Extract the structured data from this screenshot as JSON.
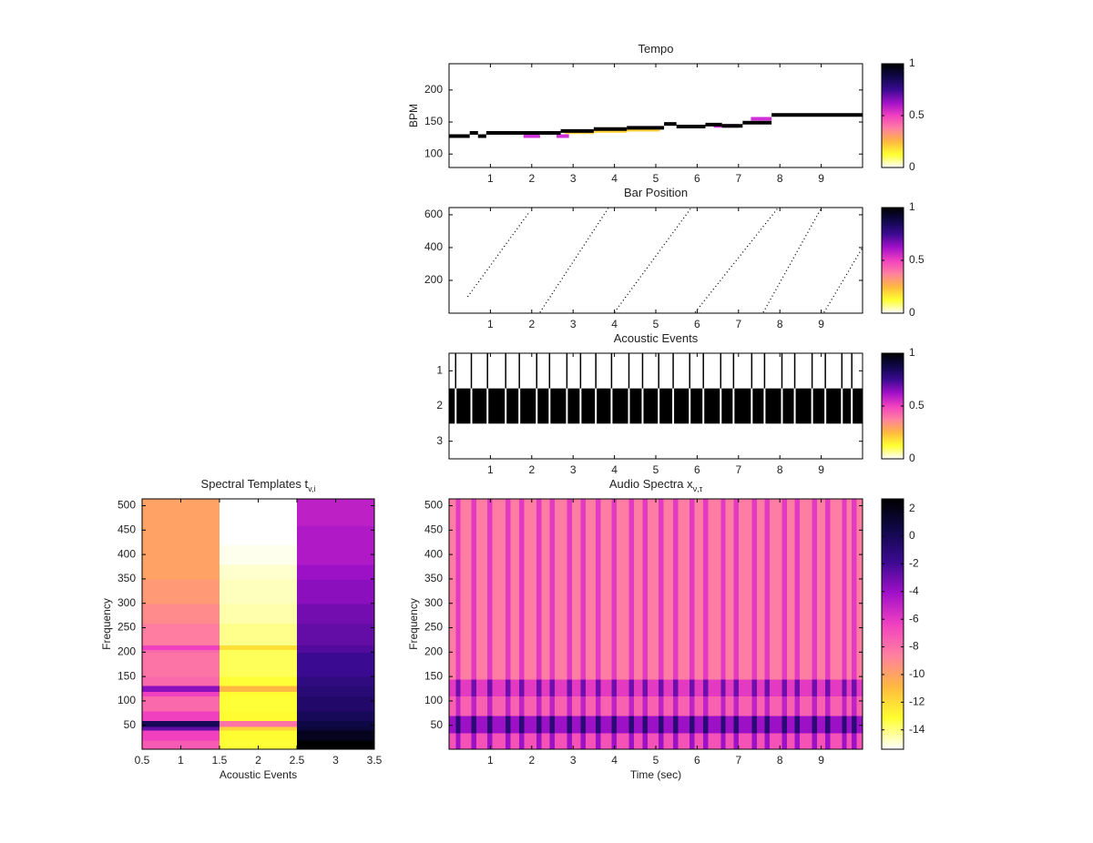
{
  "colormap": [
    "#ffffff",
    "#ffff30",
    "#ffb840",
    "#ff80a0",
    "#f040c0",
    "#a010c8",
    "#3a0a90",
    "#10084a",
    "#000000"
  ],
  "chart_data": [
    {
      "type": "step",
      "title": "Tempo",
      "ylabel": "BPM",
      "xlim": [
        0,
        10
      ],
      "xticks": [
        1,
        2,
        3,
        4,
        5,
        6,
        7,
        8,
        9
      ],
      "ylim": [
        79,
        241
      ],
      "yticks": [
        100,
        150,
        200
      ],
      "colorbar": {
        "lim": [
          0,
          1
        ],
        "ticks": [
          0,
          0.5,
          1
        ]
      },
      "series": [
        {
          "color": "#ffd23c",
          "x": [
            2.8,
            3.5,
            4.3,
            5.1
          ],
          "values": [
            134,
            136,
            138,
            null
          ]
        },
        {
          "color": "#d030d8",
          "x": [
            1.8,
            2.2,
            2.6,
            2.9,
            6.4,
            7.0,
            7.3,
            7.8
          ],
          "values": [
            128,
            null,
            128,
            null,
            144,
            null,
            155,
            null
          ]
        },
        {
          "color": "#000000",
          "x": [
            0,
            0.5,
            0.7,
            0.9,
            2.7,
            3.5,
            4.3,
            5.2,
            5.5,
            6.2,
            6.6,
            7.1,
            7.8
          ],
          "values": [
            128,
            133,
            128,
            133,
            136,
            139,
            141,
            147,
            143,
            146,
            144,
            149,
            161
          ]
        }
      ]
    },
    {
      "type": "line",
      "title": "Bar Position",
      "xlim": [
        0,
        10
      ],
      "xticks": [
        1,
        2,
        3,
        4,
        5,
        6,
        7,
        8,
        9
      ],
      "ylim": [
        0,
        644
      ],
      "yticks": [
        200,
        400,
        600
      ],
      "color": "#000000",
      "colorbar": {
        "lim": [
          0,
          1
        ],
        "ticks": [
          0,
          0.5,
          1
        ]
      },
      "x": [
        0.45,
        1.95,
        null,
        2.2,
        3.85,
        null,
        4.0,
        5.85,
        null,
        5.95,
        7.95,
        null,
        7.6,
        9.0,
        null,
        9.07,
        10
      ],
      "values": [
        100,
        620,
        null,
        5,
        640,
        null,
        5,
        640,
        null,
        5,
        640,
        null,
        5,
        640,
        null,
        5,
        400
      ]
    },
    {
      "type": "events",
      "title": "Acoustic Events",
      "xlim": [
        0,
        10
      ],
      "xticks": [
        1,
        2,
        3,
        4,
        5,
        6,
        7,
        8,
        9
      ],
      "ylim": [
        0.5,
        3.5
      ],
      "yticks": [
        1,
        2,
        3
      ],
      "yreverse": true,
      "event_row": 2,
      "colorbar": {
        "lim": [
          0,
          1
        ],
        "ticks": [
          0,
          0.5,
          1
        ]
      },
      "onsets": [
        0.16,
        0.54,
        0.93,
        1.37,
        1.7,
        2.12,
        2.43,
        2.85,
        3.18,
        3.55,
        3.93,
        4.35,
        4.68,
        5.07,
        5.42,
        5.82,
        6.15,
        6.57,
        6.88,
        7.32,
        7.63,
        8.05,
        8.36,
        8.78,
        9.1,
        9.5,
        9.74
      ]
    },
    {
      "type": "heatmap",
      "title": "Spectral Templates t",
      "title_sub": "v,i",
      "xlabel": "Acoustic Events",
      "ylabel": "Frequency",
      "xlim": [
        0.5,
        3.5
      ],
      "xticks": [
        0.5,
        1,
        1.5,
        2,
        2.5,
        3,
        3.5
      ],
      "ylim": [
        1,
        514
      ],
      "yticks": [
        50,
        100,
        150,
        200,
        250,
        300,
        350,
        400,
        450,
        500
      ],
      "clim": [
        0,
        1
      ],
      "xedges": [
        0.5,
        1.5,
        2.5,
        3.5
      ],
      "yedges": [
        1,
        20,
        40,
        48,
        60,
        80,
        110,
        120,
        132,
        150,
        200,
        205,
        215,
        260,
        300,
        350,
        380,
        420,
        460,
        514
      ],
      "z": [
        [
          0.45,
          0.12,
          1.0
        ],
        [
          0.5,
          0.13,
          0.95
        ],
        [
          0.7,
          0.2,
          0.9
        ],
        [
          0.85,
          0.4,
          0.88
        ],
        [
          0.5,
          0.13,
          0.85
        ],
        [
          0.42,
          0.12,
          0.82
        ],
        [
          0.5,
          0.13,
          0.8
        ],
        [
          0.65,
          0.25,
          0.8
        ],
        [
          0.42,
          0.12,
          0.78
        ],
        [
          0.4,
          0.1,
          0.75
        ],
        [
          0.42,
          0.1,
          0.72
        ],
        [
          0.5,
          0.18,
          0.72
        ],
        [
          0.38,
          0.07,
          0.7
        ],
        [
          0.35,
          0.05,
          0.68
        ],
        [
          0.32,
          0.04,
          0.65
        ],
        [
          0.3,
          0.03,
          0.63
        ],
        [
          0.3,
          0.01,
          0.6
        ],
        [
          0.3,
          0,
          0.6
        ],
        [
          0.3,
          0,
          0.58
        ]
      ]
    },
    {
      "type": "heatmap",
      "title": "Audio Spectra x",
      "title_sub": "ν,τ",
      "xlabel": "Time (sec)",
      "ylabel": "Frequency",
      "xlim": [
        0,
        10
      ],
      "xticks": [
        1,
        2,
        3,
        4,
        5,
        6,
        7,
        8,
        9
      ],
      "ylim": [
        1,
        514
      ],
      "yticks": [
        50,
        100,
        150,
        200,
        250,
        300,
        350,
        400,
        450,
        500
      ],
      "colorbar": {
        "lim": [
          -15.4,
          2.7
        ],
        "ticks": [
          -14,
          -12,
          -10,
          -8,
          -6,
          -4,
          -2,
          0,
          2
        ]
      },
      "xedges": [
        0,
        0.16,
        0.28,
        0.54,
        0.66,
        0.93,
        1.05,
        1.37,
        1.49,
        1.7,
        1.82,
        2.12,
        2.24,
        2.43,
        2.55,
        2.85,
        2.97,
        3.18,
        3.3,
        3.55,
        3.67,
        3.93,
        4.05,
        4.35,
        4.47,
        4.68,
        4.8,
        5.07,
        5.19,
        5.42,
        5.54,
        5.82,
        5.94,
        6.15,
        6.27,
        6.57,
        6.69,
        6.88,
        7.0,
        7.32,
        7.44,
        7.63,
        7.75,
        8.05,
        8.17,
        8.36,
        8.48,
        8.78,
        8.9,
        9.1,
        9.22,
        9.5,
        9.62,
        9.74,
        9.86,
        10
      ],
      "yedges": [
        1,
        35,
        70,
        110,
        145,
        260,
        514
      ],
      "z": [
        [
          -7,
          -4,
          -7,
          -4,
          -7,
          -4,
          -7,
          -4,
          -7,
          -4,
          -7,
          -4,
          -7,
          -4,
          -7,
          -4,
          -7,
          -4,
          -7,
          -4,
          -7,
          -4,
          -7,
          -4,
          -7,
          -4,
          -7,
          -4,
          -7,
          -4,
          -7,
          -4,
          -7,
          -4,
          -7,
          -4,
          -7,
          -4,
          -7,
          -4,
          -7,
          -4,
          -7,
          -4,
          -7,
          -4,
          -7,
          -4,
          -7,
          -4,
          -7,
          -4,
          -7,
          -4,
          -7
        ],
        [
          -4,
          -1,
          -4,
          -1,
          -4,
          -1,
          -4,
          -1,
          -4,
          -1,
          -4,
          -1,
          -4,
          -1,
          -4,
          -1,
          -4,
          -1,
          -4,
          -1,
          -4,
          -1,
          -4,
          -1,
          -4,
          -1,
          -4,
          -1,
          -4,
          -1,
          -4,
          -1,
          -4,
          -1,
          -4,
          -1,
          -4,
          -1,
          -4,
          -1,
          -4,
          -1,
          -4,
          -1,
          -4,
          -1,
          -4,
          -1,
          -4,
          -1,
          -4,
          -1,
          -4,
          -1,
          -4
        ],
        [
          -7.5,
          -5,
          -7.5,
          -5,
          -7.5,
          -5,
          -7.5,
          -5,
          -7.5,
          -5,
          -7.5,
          -5,
          -7.5,
          -5,
          -7.5,
          -5,
          -7.5,
          -5,
          -7.5,
          -5,
          -7.5,
          -5,
          -7.5,
          -5,
          -7.5,
          -5,
          -7.5,
          -5,
          -7.5,
          -5,
          -7.5,
          -5,
          -7.5,
          -5,
          -7.5,
          -5,
          -7.5,
          -5,
          -7.5,
          -5,
          -7.5,
          -5,
          -7.5,
          -5,
          -7.5,
          -5,
          -7.5,
          -5,
          -7.5,
          -5,
          -7.5,
          -5,
          -7.5,
          -5,
          -7.5
        ],
        [
          -6,
          -3,
          -6,
          -3,
          -6,
          -3,
          -6,
          -3,
          -6,
          -3,
          -6,
          -3,
          -6,
          -3,
          -6,
          -3,
          -6,
          -3,
          -6,
          -3,
          -6,
          -3,
          -6,
          -3,
          -6,
          -3,
          -6,
          -3,
          -6,
          -3,
          -6,
          -3,
          -6,
          -3,
          -6,
          -3,
          -6,
          -3,
          -6,
          -3,
          -6,
          -3,
          -6,
          -3,
          -6,
          -3,
          -6,
          -3,
          -6,
          -3,
          -6,
          -3,
          -6,
          -3,
          -6
        ],
        [
          -8.5,
          -6,
          -8.5,
          -6,
          -8.5,
          -6,
          -8.5,
          -6,
          -8.5,
          -6,
          -8.5,
          -6,
          -8.5,
          -6,
          -8.5,
          -6,
          -8.5,
          -6,
          -8.5,
          -6,
          -8.5,
          -6,
          -8.5,
          -6,
          -8.5,
          -6,
          -8.5,
          -6,
          -8.5,
          -6,
          -8.5,
          -6,
          -8.5,
          -6,
          -8.5,
          -6,
          -8.5,
          -6,
          -8.5,
          -6,
          -8.5,
          -6,
          -8.5,
          -6,
          -8.5,
          -6,
          -8.5,
          -6,
          -8.5,
          -6,
          -8.5,
          -6,
          -8.5,
          -6,
          -8.5
        ],
        [
          -8.5,
          -6,
          -8.5,
          -6,
          -8.5,
          -6,
          -8.5,
          -6,
          -8.5,
          -6,
          -8.5,
          -6,
          -8.5,
          -6,
          -8.5,
          -6,
          -8.5,
          -6,
          -8.5,
          -6,
          -8.5,
          -6,
          -8.5,
          -6,
          -8.5,
          -6,
          -8.5,
          -6,
          -8.5,
          -6,
          -8.5,
          -6,
          -8.5,
          -6,
          -8.5,
          -6,
          -8.5,
          -6,
          -8.5,
          -6,
          -8.5,
          -6,
          -8.5,
          -6,
          -8.5,
          -6,
          -8.5,
          -6,
          -8.5,
          -6,
          -8.5,
          -6,
          -8.5,
          -6,
          -8.5
        ]
      ]
    }
  ]
}
